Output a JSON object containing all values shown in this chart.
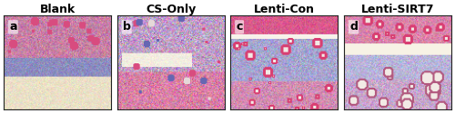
{
  "titles": [
    "Blank",
    "CS-Only",
    "Lenti-Con",
    "Lenti-SIRT7"
  ],
  "labels": [
    "a",
    "b",
    "c",
    "d"
  ],
  "bg_color": "#ffffff",
  "border_color": "#222222",
  "title_fontsize": 9,
  "label_fontsize": 9
}
